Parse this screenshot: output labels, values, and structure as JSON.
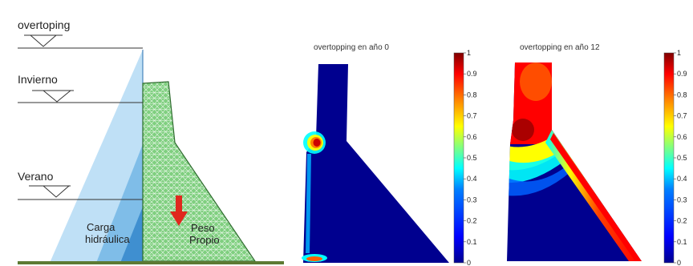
{
  "left_diagram": {
    "levels": [
      {
        "key": "overtoping",
        "label": "overtoping"
      },
      {
        "key": "invierno",
        "label": "Invierno"
      },
      {
        "key": "verano",
        "label": "Verano"
      }
    ],
    "load_label_line1": "Carga",
    "load_label_line2": "hidráulica",
    "weight_label_line1": "Peso",
    "weight_label_line2": "Propio",
    "colors": {
      "water_light": "#bfe0f6",
      "water_mid": "#7fbde8",
      "water_dark": "#3f8fd0",
      "dam_fill": "#7fcf7f",
      "ground": "#5d7a33",
      "arrow": "#e0281e"
    }
  },
  "result_panels": [
    {
      "title": "overtopping en año 0",
      "colorbar_ticks": [
        "1",
        "0.9",
        "0.8",
        "0.7",
        "0.6",
        "0.5",
        "0.4",
        "0.3",
        "0.2",
        "0.1",
        "0"
      ]
    },
    {
      "title": "overtopping en año 12",
      "colorbar_ticks": [
        "1",
        "0.9",
        "0.8",
        "0.7",
        "0.6",
        "0.5",
        "0.4",
        "0.3",
        "0.2",
        "0.1",
        "0"
      ]
    }
  ],
  "colormap": [
    "#00008f",
    "#0000ff",
    "#0080ff",
    "#00ffff",
    "#80ff80",
    "#ffff00",
    "#ff8000",
    "#ff0000",
    "#800000"
  ]
}
